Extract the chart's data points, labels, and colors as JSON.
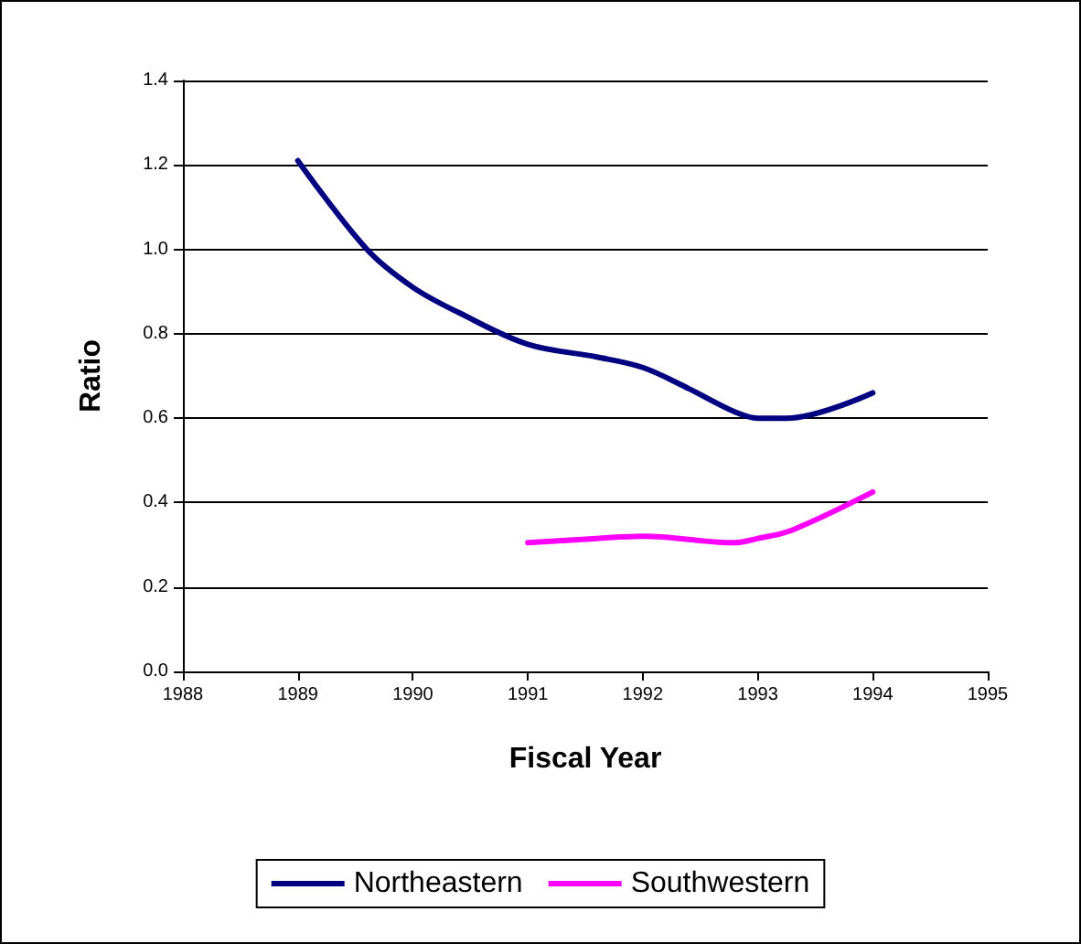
{
  "chart_data": {
    "type": "line",
    "xlabel": "Fiscal Year",
    "ylabel": "Ratio",
    "xlim": [
      1988,
      1995
    ],
    "xticks": [
      1988,
      1989,
      1990,
      1991,
      1992,
      1993,
      1994,
      1995
    ],
    "ylim": [
      0,
      1.4
    ],
    "yticks": [
      {
        "value": 0,
        "label": "0.0"
      },
      {
        "value": 0.2,
        "label": "0.2"
      },
      {
        "value": 0.4,
        "label": "0.4"
      },
      {
        "value": 0.6,
        "label": "0.6"
      },
      {
        "value": 0.8,
        "label": "0.8"
      },
      {
        "value": 1.0,
        "label": "1.0"
      },
      {
        "value": 1.2,
        "label": "1.2"
      },
      {
        "value": 1.4,
        "label": "1.4"
      }
    ],
    "series": [
      {
        "name": "Northeastern",
        "color": "#000080",
        "x": [
          1989,
          1989.6,
          1990,
          1990.4,
          1991,
          1991.6,
          1992,
          1992.4,
          1992.8,
          1993,
          1993.25,
          1994
        ],
        "values": [
          1.21,
          1.0,
          0.91,
          0.85,
          0.775,
          0.745,
          0.72,
          0.67,
          0.615,
          0.6,
          0.6,
          0.66
        ]
      },
      {
        "name": "Southwestern",
        "color": "#ff00ff",
        "x": [
          1991,
          1991.6,
          1992,
          1992.8,
          1993,
          1993.3,
          1994
        ],
        "values": [
          0.305,
          0.315,
          0.32,
          0.305,
          0.315,
          0.335,
          0.425
        ]
      }
    ],
    "grid": "y",
    "legend": "bottom",
    "marker": "none",
    "line_style": "solid"
  }
}
